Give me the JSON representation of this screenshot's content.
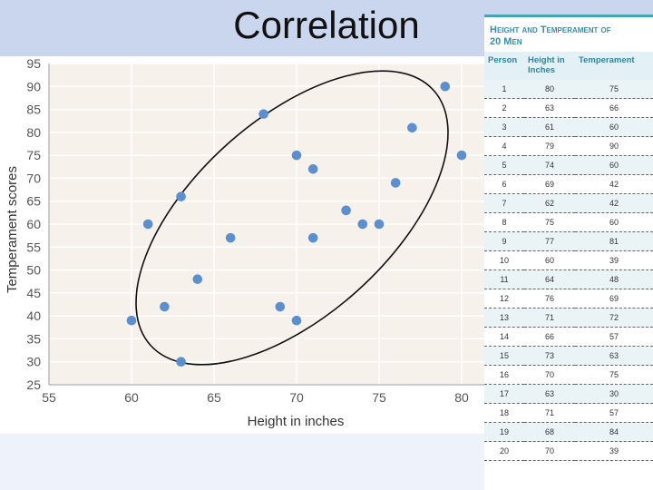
{
  "slide": {
    "title": "Correlation"
  },
  "chart_data": {
    "type": "scatter",
    "xlabel": "Height in inches",
    "ylabel": "Temperament scores",
    "xlim": [
      55,
      82
    ],
    "ylim": [
      25,
      95
    ],
    "xticks": [
      55,
      60,
      65,
      70,
      75,
      80
    ],
    "yticks": [
      25,
      30,
      35,
      40,
      45,
      50,
      55,
      60,
      65,
      70,
      75,
      80,
      85,
      90,
      95
    ],
    "grid": true,
    "point_color": "#5b8fd0",
    "background": "#f6f1ea",
    "points": [
      {
        "x": 60,
        "y": 39
      },
      {
        "x": 61,
        "y": 60
      },
      {
        "x": 62,
        "y": 42
      },
      {
        "x": 63,
        "y": 66
      },
      {
        "x": 63,
        "y": 30
      },
      {
        "x": 64,
        "y": 48
      },
      {
        "x": 66,
        "y": 57
      },
      {
        "x": 68,
        "y": 84
      },
      {
        "x": 69,
        "y": 42
      },
      {
        "x": 70,
        "y": 75
      },
      {
        "x": 70,
        "y": 39
      },
      {
        "x": 71,
        "y": 72
      },
      {
        "x": 71,
        "y": 57
      },
      {
        "x": 73,
        "y": 63
      },
      {
        "x": 74,
        "y": 60
      },
      {
        "x": 75,
        "y": 60
      },
      {
        "x": 76,
        "y": 69
      },
      {
        "x": 77,
        "y": 81
      },
      {
        "x": 79,
        "y": 90
      },
      {
        "x": 80,
        "y": 75
      }
    ]
  },
  "table": {
    "title_line1": "Height and Temperament of",
    "title_line2": "20 Men",
    "headers": [
      "Person",
      "Height in Inches",
      "Temperament"
    ],
    "rows": [
      [
        "1",
        "80",
        "75"
      ],
      [
        "2",
        "63",
        "66"
      ],
      [
        "3",
        "61",
        "60"
      ],
      [
        "4",
        "79",
        "90"
      ],
      [
        "5",
        "74",
        "60"
      ],
      [
        "6",
        "69",
        "42"
      ],
      [
        "7",
        "62",
        "42"
      ],
      [
        "8",
        "75",
        "60"
      ],
      [
        "9",
        "77",
        "81"
      ],
      [
        "10",
        "60",
        "39"
      ],
      [
        "11",
        "64",
        "48"
      ],
      [
        "12",
        "76",
        "69"
      ],
      [
        "13",
        "71",
        "72"
      ],
      [
        "14",
        "66",
        "57"
      ],
      [
        "15",
        "73",
        "63"
      ],
      [
        "16",
        "70",
        "75"
      ],
      [
        "17",
        "63",
        "30"
      ],
      [
        "18",
        "71",
        "57"
      ],
      [
        "19",
        "68",
        "84"
      ],
      [
        "20",
        "70",
        "39"
      ]
    ]
  }
}
